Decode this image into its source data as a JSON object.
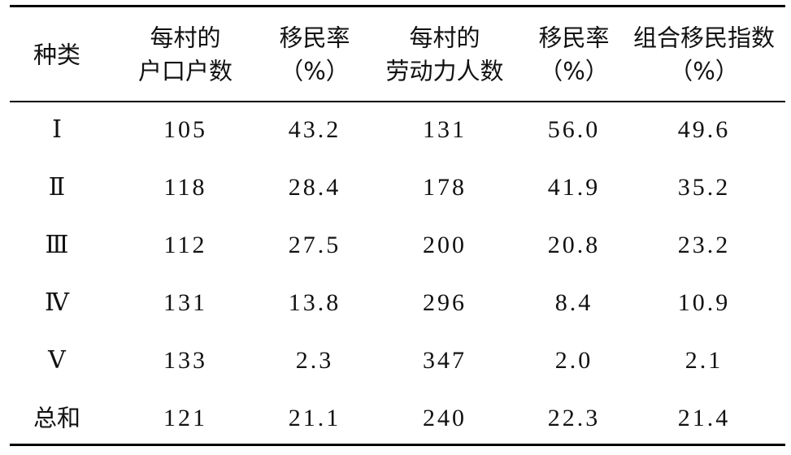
{
  "table": {
    "header": [
      [
        "种类"
      ],
      [
        "每村的",
        "户口户数"
      ],
      [
        "移民率",
        "（%）"
      ],
      [
        "每村的",
        "劳动力人数"
      ],
      [
        "移民率",
        "（%）"
      ],
      [
        "组合移民指数",
        "（%）"
      ]
    ],
    "rows": [
      [
        "Ⅰ",
        "105",
        "43.2",
        "131",
        "56.0",
        "49.6"
      ],
      [
        "Ⅱ",
        "118",
        "28.4",
        "178",
        "41.9",
        "35.2"
      ],
      [
        "Ⅲ",
        "112",
        "27.5",
        "200",
        "20.8",
        "23.2"
      ],
      [
        "Ⅳ",
        "131",
        "13.8",
        "296",
        "8.4",
        "10.9"
      ],
      [
        "Ⅴ",
        "133",
        "2.3",
        "347",
        "2.0",
        "2.1"
      ],
      [
        "总和",
        "121",
        "21.1",
        "240",
        "22.3",
        "21.4"
      ]
    ]
  }
}
